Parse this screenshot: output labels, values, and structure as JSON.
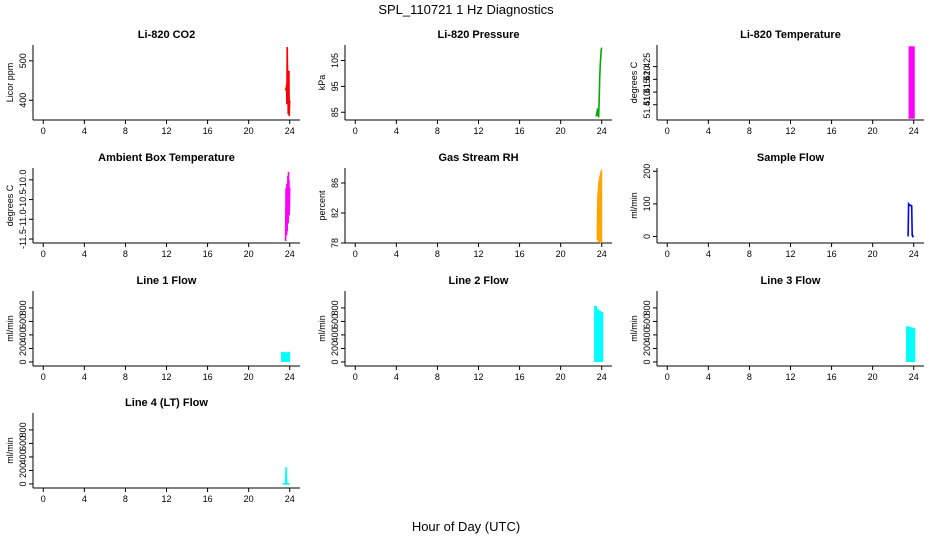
{
  "figure": {
    "title": "SPL_110721  1 Hz Diagnostics",
    "xlabel": "Hour of Day (UTC)"
  },
  "chart_data": [
    {
      "type": "line",
      "title": "Li-820 CO2",
      "ylabel": "Licor ppm",
      "color": "#ff0000",
      "xlim": [
        -1,
        25
      ],
      "ylim": [
        350,
        540
      ],
      "xticks": [
        0,
        4,
        8,
        12,
        16,
        20,
        24
      ],
      "yticks": [
        400,
        500
      ],
      "series": [
        {
          "name": "CO2",
          "x": [
            23.6,
            23.65,
            23.7,
            23.72,
            23.75,
            23.78,
            23.8,
            23.82,
            23.85,
            23.88,
            23.9,
            23.92,
            23.95,
            24.0
          ],
          "y": [
            430,
            425,
            440,
            390,
            535,
            480,
            410,
            470,
            365,
            420,
            385,
            475,
            360,
            400
          ]
        }
      ]
    },
    {
      "type": "line",
      "title": "Li-820 Pressure",
      "ylabel": "kPa",
      "color": "#00aa00",
      "xlim": [
        -1,
        25
      ],
      "ylim": [
        82,
        111
      ],
      "xticks": [
        0,
        4,
        8,
        12,
        16,
        20,
        24
      ],
      "yticks": [
        85,
        95,
        105
      ],
      "series": [
        {
          "name": "Pressure",
          "x": [
            23.4,
            23.5,
            23.6,
            23.65,
            23.7,
            23.75,
            23.8,
            23.85,
            23.9,
            23.95,
            24.0
          ],
          "y": [
            83.5,
            83.8,
            86.5,
            84.0,
            83.0,
            90,
            98,
            103,
            106,
            109,
            110
          ]
        }
      ]
    },
    {
      "type": "area",
      "title": "Li-820 Temperature",
      "ylabel": "degrees C",
      "color": "#ff00ff",
      "xlim": [
        -1,
        25
      ],
      "ylim": [
        51.404,
        51.4335
      ],
      "xticks": [
        0,
        4,
        8,
        12,
        16,
        20,
        24
      ],
      "yticks": [
        51.41,
        51.415,
        51.42,
        51.425
      ],
      "ytick_labels": [
        "51.410",
        "51.415",
        "51.420",
        "51.425"
      ],
      "extra_tick_label": "51.410",
      "series": [
        {
          "name": "Temperature",
          "x": [
            23.5,
            24.1
          ],
          "y_min": 51.4045,
          "y_max": 51.433
        }
      ]
    },
    {
      "type": "line",
      "title": "Ambient Box Temperature",
      "ylabel": "degrees C",
      "color": "#ff00ff",
      "xlim": [
        -1,
        25
      ],
      "ylim": [
        -11.6,
        -9.7
      ],
      "xticks": [
        0,
        4,
        8,
        12,
        16,
        20,
        24
      ],
      "yticks": [
        -11.5,
        -11.0,
        -10.5,
        -10.0
      ],
      "ytick_labels": [
        "-11.5",
        "-11.0",
        "-10.5",
        "-10.0"
      ],
      "series": [
        {
          "name": "Ambient",
          "x": [
            23.6,
            23.65,
            23.7,
            23.72,
            23.75,
            23.78,
            23.8,
            23.82,
            23.85,
            23.88,
            23.9,
            23.92,
            23.95,
            24.0
          ],
          "y": [
            -11.55,
            -10.2,
            -11.4,
            -10.1,
            -11.3,
            -10.3,
            -11.0,
            -9.9,
            -11.1,
            -9.8,
            -10.8,
            -10.0,
            -10.9,
            -10.2
          ]
        }
      ]
    },
    {
      "type": "area",
      "title": "Gas Stream RH",
      "ylabel": "percent",
      "color": "#ffa500",
      "xlim": [
        -1,
        25
      ],
      "ylim": [
        78,
        88
      ],
      "xticks": [
        0,
        4,
        8,
        12,
        16,
        20,
        24
      ],
      "yticks": [
        78,
        82,
        86
      ],
      "series": [
        {
          "name": "RH",
          "x": [
            23.55,
            23.6,
            23.7,
            23.8,
            23.9,
            24.0
          ],
          "y_min": [
            78.6,
            78.4,
            78.2,
            78.1,
            78.0,
            78.2
          ],
          "y_max": [
            80.5,
            84.0,
            86.0,
            86.8,
            87.4,
            87.8
          ]
        }
      ]
    },
    {
      "type": "line",
      "title": "Sample Flow",
      "ylabel": "ml/min",
      "color": "#0000ff",
      "xlim": [
        -1,
        25
      ],
      "ylim": [
        -20,
        210
      ],
      "xticks": [
        0,
        4,
        8,
        12,
        16,
        20,
        24
      ],
      "yticks": [
        0,
        100,
        200
      ],
      "series": [
        {
          "name": "Sample Flow",
          "x": [
            23.45,
            23.5,
            23.55,
            23.6,
            23.7,
            23.8,
            23.85,
            23.9,
            24.0
          ],
          "y": [
            0,
            100,
            98,
            95,
            96,
            94,
            4,
            0,
            2
          ]
        }
      ]
    },
    {
      "type": "bar",
      "title": "Line 1 Flow",
      "ylabel": "ml/min",
      "color": "#00ffff",
      "xlim": [
        -1,
        25
      ],
      "ylim": [
        -60,
        1050
      ],
      "xticks": [
        0,
        4,
        8,
        12,
        16,
        20,
        24
      ],
      "yticks": [
        0,
        200,
        400,
        600,
        800
      ],
      "series": [
        {
          "name": "Line 1",
          "x": [
            23.3,
            23.5,
            23.7,
            23.9
          ],
          "y_min": [
            0,
            0,
            0,
            0
          ],
          "y_max": [
            150,
            145,
            140,
            150
          ]
        }
      ]
    },
    {
      "type": "bar",
      "title": "Line 2 Flow",
      "ylabel": "ml/min",
      "color": "#00ffff",
      "xlim": [
        -1,
        25
      ],
      "ylim": [
        -60,
        1050
      ],
      "xticks": [
        0,
        4,
        8,
        12,
        16,
        20,
        24
      ],
      "yticks": [
        0,
        200,
        400,
        600,
        800
      ],
      "series": [
        {
          "name": "Line 2",
          "x": [
            23.4,
            23.6,
            23.8,
            24.0
          ],
          "y_min": [
            0,
            0,
            0,
            0
          ],
          "y_max": [
            830,
            780,
            760,
            740
          ]
        }
      ]
    },
    {
      "type": "bar",
      "title": "Line 3 Flow",
      "ylabel": "ml/min",
      "color": "#00ffff",
      "xlim": [
        -1,
        25
      ],
      "ylim": [
        -60,
        1050
      ],
      "xticks": [
        0,
        4,
        8,
        12,
        16,
        20,
        24
      ],
      "yticks": [
        0,
        200,
        400,
        600,
        800
      ],
      "series": [
        {
          "name": "Line 3",
          "x": [
            23.4,
            23.6,
            23.8,
            24.0
          ],
          "y_min": [
            0,
            0,
            0,
            0
          ],
          "y_max": [
            530,
            520,
            510,
            500
          ]
        }
      ]
    },
    {
      "type": "line",
      "title": "Line 4 (LT) Flow",
      "ylabel": "ml/min",
      "color": "#00ffff",
      "xlim": [
        -1,
        25
      ],
      "ylim": [
        -60,
        1050
      ],
      "xticks": [
        0,
        4,
        8,
        12,
        16,
        20,
        24
      ],
      "yticks": [
        0,
        200,
        400,
        600,
        800
      ],
      "series": [
        {
          "name": "Line 4",
          "x": [
            23.3,
            23.5,
            23.6,
            23.65,
            23.7,
            23.8,
            24.0
          ],
          "y": [
            0,
            0,
            10,
            250,
            0,
            5,
            0
          ]
        }
      ]
    }
  ]
}
